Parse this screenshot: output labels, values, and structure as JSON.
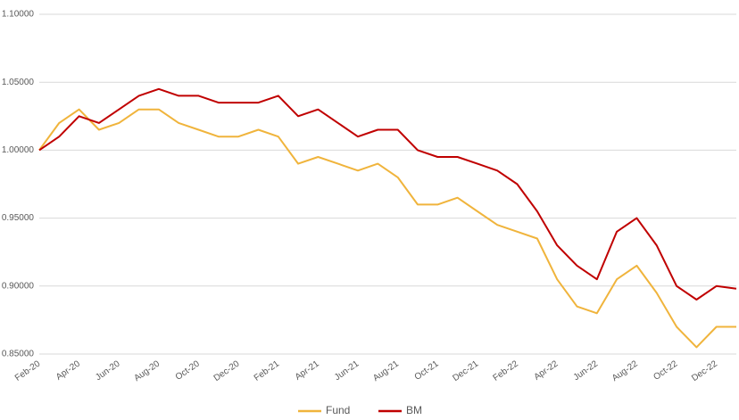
{
  "chart_data": {
    "type": "line",
    "categories": [
      "Feb-20",
      null,
      "Apr-20",
      null,
      "Jun-20",
      null,
      "Aug-20",
      null,
      "Oct-20",
      null,
      "Dec-20",
      null,
      "Feb-21",
      null,
      "Apr-21",
      null,
      "Jun-21",
      null,
      "Aug-21",
      null,
      "Oct-21",
      null,
      "Dec-21",
      null,
      "Feb-22",
      null,
      "Apr-22",
      null,
      "Jun-22",
      null,
      "Aug-22",
      null,
      "Oct-22",
      null,
      "Dec-22",
      null
    ],
    "series": [
      {
        "name": "Fund",
        "color": "#f0b43c",
        "values": [
          1.0,
          1.02,
          1.03,
          1.015,
          1.02,
          1.03,
          1.03,
          1.02,
          1.015,
          1.01,
          1.01,
          1.015,
          1.01,
          0.99,
          0.995,
          0.99,
          0.985,
          0.99,
          0.98,
          0.96,
          0.96,
          0.965,
          0.955,
          0.945,
          0.94,
          0.935,
          0.905,
          0.885,
          0.88,
          0.905,
          0.915,
          0.895,
          0.87,
          0.855,
          0.87,
          0.87
        ]
      },
      {
        "name": "BM",
        "color": "#c00000",
        "values": [
          1.0,
          1.01,
          1.025,
          1.02,
          1.03,
          1.04,
          1.045,
          1.04,
          1.04,
          1.035,
          1.035,
          1.035,
          1.04,
          1.025,
          1.03,
          1.02,
          1.01,
          1.015,
          1.015,
          1.0,
          0.995,
          0.995,
          0.99,
          0.985,
          0.975,
          0.955,
          0.93,
          0.915,
          0.905,
          0.94,
          0.95,
          0.93,
          0.9,
          0.89,
          0.9,
          0.898
        ]
      }
    ],
    "ylim": [
      0.85,
      1.1
    ],
    "yticks": [
      {
        "value": 0.85,
        "label": "0.85000"
      },
      {
        "value": 0.9,
        "label": "0.90000"
      },
      {
        "value": 0.95,
        "label": "0.95000"
      },
      {
        "value": 1.0,
        "label": "1.00000"
      },
      {
        "value": 1.05,
        "label": "1.05000"
      },
      {
        "value": 1.1,
        "label": "1.10000"
      }
    ],
    "grid": true,
    "legend": "bottom"
  }
}
